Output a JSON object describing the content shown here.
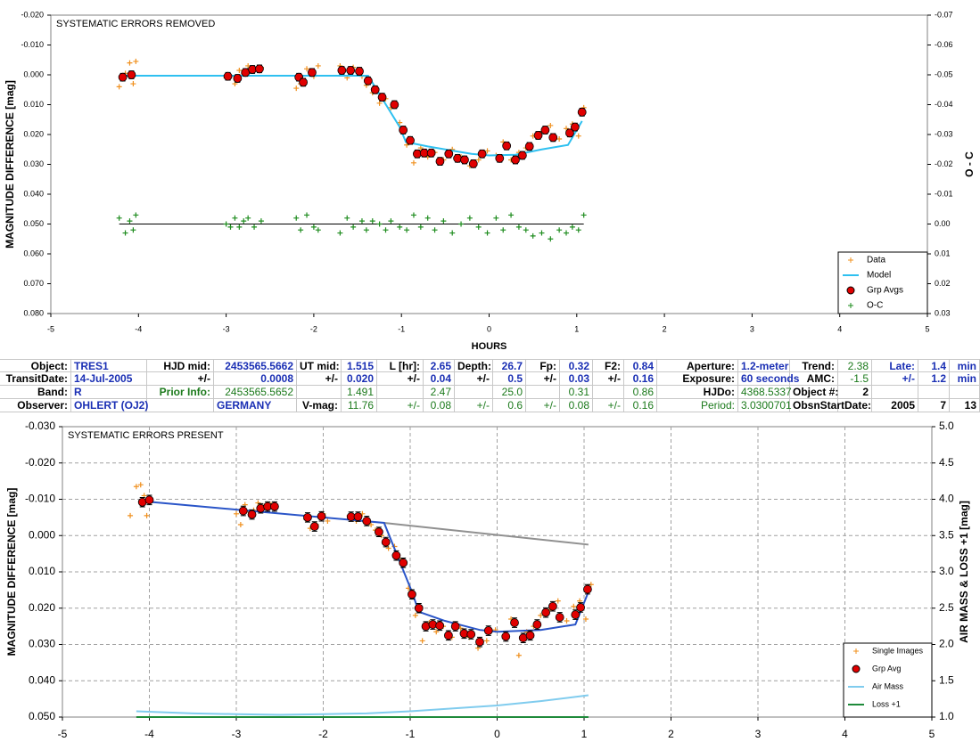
{
  "chart_data": [
    {
      "type": "scatter",
      "annotation": "SYSTEMATIC ERRORS REMOVED",
      "xlabel": "HOURS",
      "ylabel": "MAGNITUDE DIFFERENCE [mag]",
      "y2label": "O - C",
      "xlim": [
        -5,
        5
      ],
      "xticks": [
        -5,
        -4,
        -3,
        -2,
        -1,
        0,
        1,
        2,
        3,
        4,
        5
      ],
      "ylim": [
        -0.02,
        0.08
      ],
      "yreverse": true,
      "yticks": [
        {
          "value": -0.02,
          "label": "-0.020"
        },
        {
          "value": -0.01,
          "label": "-0.010"
        },
        {
          "value": 0,
          "label": "0.000"
        },
        {
          "value": 0.01,
          "label": "0.010"
        },
        {
          "value": 0.02,
          "label": "0.020"
        },
        {
          "value": 0.03,
          "label": "0.030"
        },
        {
          "value": 0.04,
          "label": "0.040"
        },
        {
          "value": 0.05,
          "label": "0.050"
        },
        {
          "value": 0.06,
          "label": "0.060"
        },
        {
          "value": 0.07,
          "label": "0.070"
        },
        {
          "value": 0.08,
          "label": "0.080"
        }
      ],
      "y2lim": [
        -0.07,
        0.03
      ],
      "y2reverse": true,
      "y2ticks": [
        -0.07,
        -0.06,
        -0.05,
        -0.04,
        -0.03,
        -0.02,
        -0.01,
        {
          "value": 0,
          "label": "0.00"
        },
        0.01,
        0.02,
        0.03
      ],
      "grid": false,
      "legend": "lower right",
      "series": [
        {
          "name": "Data",
          "color": "#f0901e",
          "marker": "plus",
          "x": [
            -4.22,
            -4.15,
            -4.1,
            -4.06,
            -4.03,
            -3.0,
            -2.95,
            -2.9,
            -2.85,
            -2.8,
            -2.75,
            -2.68,
            -2.6,
            -2.2,
            -2.15,
            -2.08,
            -2.0,
            -1.95,
            -1.7,
            -1.62,
            -1.55,
            -1.45,
            -1.4,
            -1.33,
            -1.25,
            -1.18,
            -1.12,
            -1.02,
            -0.94,
            -0.86,
            -0.78,
            -0.7,
            -0.62,
            -0.52,
            -0.42,
            -0.32,
            -0.22,
            -0.12,
            -0.02,
            0.08,
            0.16,
            0.25,
            0.34,
            0.42,
            0.5,
            0.6,
            0.7,
            0.8,
            0.88,
            0.95,
            1.02,
            1.08
          ],
          "values": [
            0.004,
            -0.0005,
            -0.004,
            0.003,
            -0.0045,
            0.001,
            0.0005,
            0.003,
            -0.0015,
            -0.0005,
            -0.003,
            -0.002,
            -0.0025,
            0.0045,
            0.003,
            -0.002,
            0.0005,
            -0.003,
            -0.003,
            0.001,
            -0.0025,
            0.0005,
            0.0035,
            0.006,
            0.0095,
            0.008,
            0.011,
            0.016,
            0.0235,
            0.0295,
            0.0245,
            0.0275,
            0.026,
            0.0285,
            0.025,
            0.0275,
            0.0305,
            0.0285,
            0.0255,
            0.027,
            0.0225,
            0.0285,
            0.026,
            0.0245,
            0.0205,
            0.019,
            0.017,
            0.0215,
            0.018,
            0.0165,
            0.0205,
            0.011
          ]
        },
        {
          "name": "Model",
          "color": "#2ec0f0",
          "marker": "line",
          "x": [
            -4.15,
            -1.38,
            -1.02,
            -0.95,
            -0.7,
            -0.2,
            0.0,
            0.3,
            0.6,
            0.9,
            1.06
          ],
          "values": [
            0.0003,
            0.0003,
            0.0175,
            0.0225,
            0.024,
            0.0265,
            0.027,
            0.0268,
            0.025,
            0.0235,
            0.0155
          ]
        },
        {
          "name": "Grp Avgs",
          "color": "#e00000",
          "marker": "circle",
          "error": 0.0013,
          "x": [
            -4.18,
            -4.08,
            -2.98,
            -2.87,
            -2.78,
            -2.7,
            -2.62,
            -2.17,
            -2.12,
            -2.02,
            -1.68,
            -1.58,
            -1.48,
            -1.38,
            -1.3,
            -1.22,
            -1.08,
            -0.98,
            -0.9,
            -0.82,
            -0.74,
            -0.66,
            -0.56,
            -0.46,
            -0.36,
            -0.28,
            -0.18,
            -0.08,
            0.12,
            0.2,
            0.3,
            0.38,
            0.46,
            0.56,
            0.64,
            0.73,
            0.92,
            0.98,
            1.06
          ],
          "values": [
            0.0008,
            0.0,
            0.0005,
            0.0012,
            -0.0008,
            -0.0018,
            -0.002,
            0.0008,
            0.0025,
            -0.0008,
            -0.0015,
            -0.0015,
            -0.0012,
            0.002,
            0.005,
            0.0075,
            0.01,
            0.0185,
            0.022,
            0.0265,
            0.0262,
            0.0262,
            0.029,
            0.0265,
            0.028,
            0.0285,
            0.0298,
            0.0265,
            0.028,
            0.0238,
            0.0285,
            0.027,
            0.024,
            0.0203,
            0.0185,
            0.021,
            0.0195,
            0.0175,
            0.0125
          ]
        },
        {
          "name": "O-C",
          "color": "#1e8c1e",
          "marker": "plus",
          "axis": "y2",
          "x": [
            -4.22,
            -4.15,
            -4.1,
            -4.06,
            -4.03,
            -3.0,
            -2.95,
            -2.9,
            -2.85,
            -2.8,
            -2.75,
            -2.68,
            -2.6,
            -2.2,
            -2.15,
            -2.08,
            -2.0,
            -1.95,
            -1.7,
            -1.62,
            -1.55,
            -1.45,
            -1.4,
            -1.33,
            -1.25,
            -1.18,
            -1.12,
            -1.02,
            -0.94,
            -0.86,
            -0.78,
            -0.7,
            -0.62,
            -0.52,
            -0.42,
            -0.32,
            -0.22,
            -0.12,
            -0.02,
            0.08,
            0.16,
            0.25,
            0.34,
            0.42,
            0.5,
            0.6,
            0.7,
            0.8,
            0.88,
            0.95,
            1.02,
            1.08
          ],
          "values": [
            -0.002,
            0.003,
            -0.001,
            0.002,
            -0.003,
            0,
            0.001,
            -0.002,
            0.001,
            -0.001,
            -0.002,
            0.001,
            -0.001,
            -0.002,
            0.002,
            -0.003,
            0.001,
            0.002,
            0.003,
            -0.002,
            0.001,
            -0.001,
            0.002,
            -0.001,
            0,
            0.002,
            -0.001,
            0.001,
            0.002,
            -0.003,
            0.001,
            -0.002,
            0.002,
            -0.001,
            0.003,
            0,
            -0.002,
            0.001,
            0.003,
            -0.002,
            0.002,
            -0.003,
            0.001,
            0.002,
            0.004,
            0.003,
            0.005,
            0.002,
            0.003,
            0.001,
            0.002,
            -0.003
          ]
        }
      ]
    },
    {
      "type": "scatter",
      "annotation": "SYSTEMATIC ERRORS PRESENT",
      "ylabel": "MAGNITUDE DIFFERENCE [mag]",
      "y2label": "AIR MASS & LOSS +1 [mag]",
      "xlim": [
        -5,
        5
      ],
      "xticks": [
        -5,
        -4,
        -3,
        -2,
        -1,
        0,
        1,
        2,
        3,
        4,
        5
      ],
      "ylim": [
        -0.03,
        0.05
      ],
      "yreverse": true,
      "yticks": [
        {
          "value": -0.03,
          "label": "-0.030"
        },
        {
          "value": -0.02,
          "label": "-0.020"
        },
        {
          "value": -0.01,
          "label": "-0.010"
        },
        {
          "value": 0,
          "label": "0.000"
        },
        {
          "value": 0.01,
          "label": "0.010"
        },
        {
          "value": 0.02,
          "label": "0.020"
        },
        {
          "value": 0.03,
          "label": "0.030"
        },
        {
          "value": 0.04,
          "label": "0.040"
        },
        {
          "value": 0.05,
          "label": "0.050"
        }
      ],
      "y2lim": [
        1,
        5
      ],
      "y2reverse": false,
      "y2ticks": [
        {
          "value": 1,
          "label": "1.0"
        },
        1.5,
        {
          "value": 2,
          "label": "2.0"
        },
        2.5,
        {
          "value": 3,
          "label": "3.0"
        },
        3.5,
        {
          "value": 4,
          "label": "4.0"
        },
        4.5,
        {
          "value": 5,
          "label": "5.0"
        }
      ],
      "grid": true,
      "legend": "lower right",
      "series": [
        {
          "name": "Single Images",
          "color": "#f0901e",
          "marker": "plus",
          "x": [
            -4.22,
            -4.15,
            -4.1,
            -4.06,
            -4.03,
            -3.0,
            -2.95,
            -2.9,
            -2.85,
            -2.8,
            -2.75,
            -2.68,
            -2.6,
            -2.2,
            -2.15,
            -2.08,
            -2.0,
            -1.95,
            -1.7,
            -1.62,
            -1.55,
            -1.45,
            -1.4,
            -1.33,
            -1.25,
            -1.18,
            -1.12,
            -1.02,
            -0.94,
            -0.86,
            -0.78,
            -0.7,
            -0.62,
            -0.52,
            -0.42,
            -0.32,
            -0.22,
            -0.12,
            -0.02,
            0.08,
            0.16,
            0.25,
            0.34,
            0.42,
            0.5,
            0.6,
            0.7,
            0.8,
            0.88,
            0.95,
            1.02,
            1.08
          ],
          "values": [
            -0.0055,
            -0.0135,
            -0.014,
            -0.011,
            -0.0055,
            -0.006,
            -0.003,
            -0.0085,
            -0.0065,
            -0.007,
            -0.009,
            -0.008,
            -0.0085,
            -0.0045,
            -0.002,
            -0.003,
            -0.006,
            -0.004,
            -0.0055,
            -0.004,
            -0.006,
            -0.003,
            -0.0015,
            0.0,
            0.0035,
            0.003,
            0.0065,
            0.0145,
            0.022,
            0.029,
            0.024,
            0.0265,
            0.025,
            0.028,
            0.0255,
            0.028,
            0.031,
            0.029,
            0.026,
            0.0275,
            0.023,
            0.033,
            0.0265,
            0.025,
            0.022,
            0.0205,
            0.018,
            0.0235,
            0.0195,
            0.018,
            0.023,
            0.0135
          ]
        },
        {
          "color": "#909090",
          "marker": "line",
          "x": [
            -1.3,
            1.05
          ],
          "values": [
            -0.0035,
            0.0025
          ]
        },
        {
          "color": "#2a55c8",
          "marker": "line",
          "x": [
            -4.1,
            -1.3,
            -0.98,
            -0.9,
            -0.6,
            -0.2,
            0.0,
            0.5,
            0.9,
            1.05
          ],
          "values": [
            -0.0095,
            -0.0035,
            0.0155,
            0.021,
            0.0235,
            0.026,
            0.0265,
            0.026,
            0.0245,
            0.0155
          ]
        },
        {
          "name": "Grp Avg",
          "color": "#e00000",
          "marker": "circle",
          "error": 0.0013,
          "x": [
            -4.08,
            -4.0,
            -2.92,
            -2.82,
            -2.72,
            -2.64,
            -2.56,
            -2.18,
            -2.1,
            -2.02,
            -1.68,
            -1.6,
            -1.5,
            -1.36,
            -1.28,
            -1.16,
            -1.08,
            -0.98,
            -0.9,
            -0.82,
            -0.74,
            -0.66,
            -0.56,
            -0.48,
            -0.38,
            -0.3,
            -0.2,
            -0.1,
            0.1,
            0.2,
            0.3,
            0.38,
            0.46,
            0.56,
            0.64,
            0.72,
            0.9,
            0.96,
            1.04
          ],
          "values": [
            -0.0092,
            -0.0098,
            -0.0068,
            -0.0058,
            -0.0075,
            -0.008,
            -0.008,
            -0.005,
            -0.0025,
            -0.0053,
            -0.0052,
            -0.0052,
            -0.004,
            -0.001,
            0.0018,
            0.0055,
            0.0075,
            0.0162,
            0.02,
            0.025,
            0.0245,
            0.0248,
            0.0275,
            0.025,
            0.027,
            0.0272,
            0.0293,
            0.0262,
            0.0278,
            0.024,
            0.0282,
            0.0275,
            0.0245,
            0.0212,
            0.0195,
            0.0225,
            0.0218,
            0.0198,
            0.0148
          ]
        },
        {
          "name": "Air Mass",
          "color": "#80ccee",
          "marker": "line",
          "axis": "y2",
          "x": [
            -4.15,
            -3.5,
            -3,
            -2.5,
            -2,
            -1.5,
            -1,
            -0.5,
            0,
            0.5,
            1.05
          ],
          "values": [
            1.08,
            1.05,
            1.04,
            1.03,
            1.04,
            1.05,
            1.08,
            1.12,
            1.16,
            1.22,
            1.3
          ]
        },
        {
          "name": "Loss +1",
          "color": "#1e8a3a",
          "marker": "line",
          "axis": "y2",
          "x": [
            -4.15,
            1.05
          ],
          "values": [
            1.0,
            1.0
          ]
        }
      ]
    }
  ],
  "table": {
    "rows": [
      [
        "Object:",
        "TRES1",
        "HJD mid:",
        "2453565.5662",
        "UT mid:",
        "1.515",
        "L [hr]:",
        "2.65",
        "Depth:",
        "26.7",
        "Fp:",
        "0.32",
        "F2:",
        "0.84",
        "Aperture:",
        "1.2-meter",
        "Trend:",
        "2.38",
        "Late:",
        "1.4",
        "min"
      ],
      [
        "TransitDate:",
        "14-Jul-2005",
        "+/-",
        "0.0008",
        "+/-",
        "0.020",
        "+/-",
        "0.04",
        "+/-",
        "0.5",
        "+/-",
        "0.03",
        "+/-",
        "0.16",
        "Exposure:",
        "60 seconds",
        "AMC:",
        "-1.5",
        "+/-",
        "1.2",
        "min"
      ],
      [
        "Band:",
        "R",
        "Prior Info:",
        "2453565.5652",
        null,
        "1.491",
        null,
        "2.47",
        null,
        "25.0",
        null,
        "0.31",
        null,
        "0.86",
        "HJDo:",
        "4368.5337",
        "Object #:",
        "2",
        null,
        null,
        null
      ],
      [
        "Observer:",
        "OHLERT (OJ2)",
        null,
        "GERMANY",
        "V-mag:",
        "11.76",
        "+/-",
        "0.08",
        "+/-",
        "0.6",
        "+/-",
        "0.08",
        "+/-",
        "0.16",
        "Period:",
        "3.0300701",
        "ObsnStartDate:",
        null,
        "2005",
        "7",
        "13"
      ]
    ]
  }
}
